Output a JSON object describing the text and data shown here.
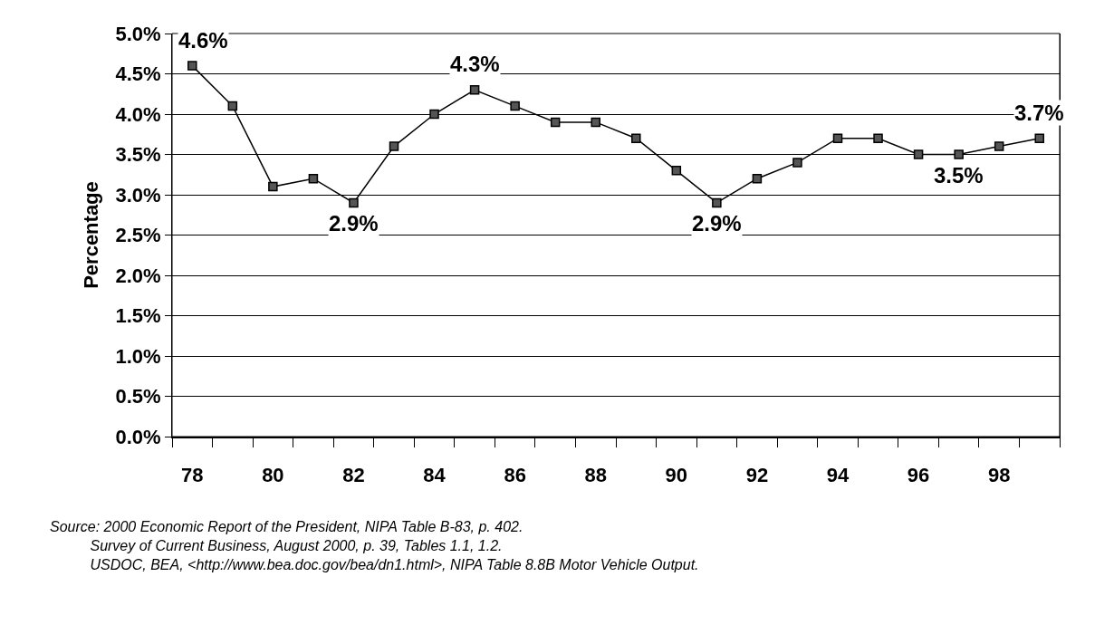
{
  "chart_data": {
    "type": "line",
    "ylabel": "Percentage",
    "categories": [
      "78",
      null,
      "80",
      null,
      "82",
      null,
      "84",
      null,
      "86",
      null,
      "88",
      null,
      "90",
      null,
      "92",
      null,
      "94",
      null,
      "96",
      null,
      "98",
      null
    ],
    "values": [
      4.6,
      4.1,
      3.1,
      3.2,
      2.9,
      3.6,
      4.0,
      4.3,
      4.1,
      3.9,
      3.9,
      3.7,
      3.3,
      2.9,
      3.2,
      3.4,
      3.7,
      3.7,
      3.5,
      3.5,
      3.6,
      3.7
    ],
    "value_labels": [
      "4.6%",
      null,
      null,
      null,
      "2.9%",
      null,
      null,
      "4.3%",
      null,
      null,
      null,
      null,
      null,
      "2.9%",
      null,
      null,
      null,
      null,
      null,
      "3.5%",
      null,
      "3.7%"
    ],
    "color": "#000000",
    "marker": "square",
    "line_style": "solid",
    "grid": "y",
    "legend": false,
    "ylim": [
      0,
      5
    ],
    "yticks": [
      {
        "value": 0,
        "label": "0.0%"
      },
      {
        "value": 0.5,
        "label": "0.5%"
      },
      {
        "value": 1,
        "label": "1.0%"
      },
      {
        "value": 1.5,
        "label": "1.5%"
      },
      {
        "value": 2,
        "label": "2.0%"
      },
      {
        "value": 2.5,
        "label": "2.5%"
      },
      {
        "value": 3,
        "label": "3.0%"
      },
      {
        "value": 3.5,
        "label": "3.5%"
      },
      {
        "value": 4,
        "label": "4.0%"
      },
      {
        "value": 4.5,
        "label": "4.5%"
      },
      {
        "value": 5,
        "label": "5.0%"
      }
    ],
    "annotations": [
      "Source: 2000 Economic Report of the President, NIPA Table B-83, p. 402.\n          Survey of Current Business, August 2000, p. 39, Tables 1.1, 1.2.\n          USDOC, BEA, <http://www.bea.doc.gov/bea/dn1.html>, NIPA Table 8.8B Motor Vehicle Output."
    ]
  }
}
